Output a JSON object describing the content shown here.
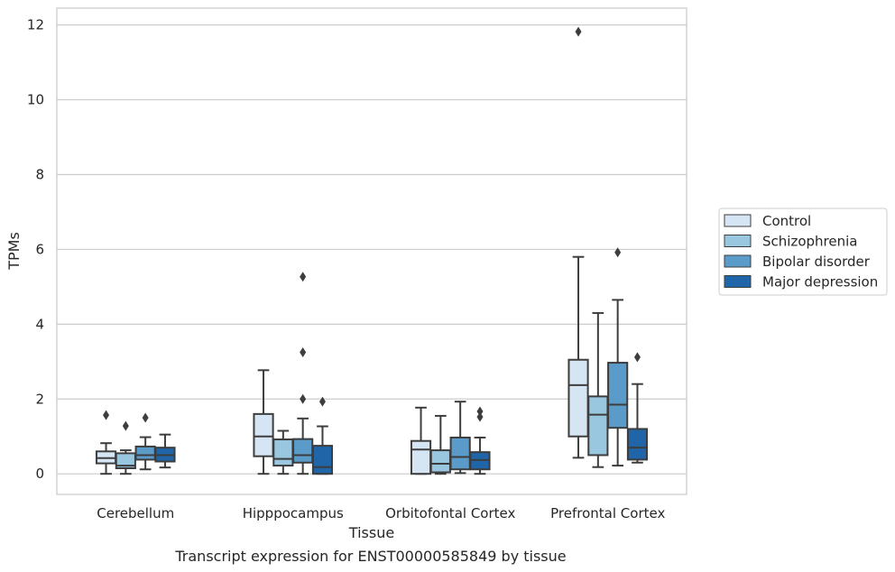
{
  "caption": "Transcript expression for ENST00000585849 by tissue",
  "chart_data": {
    "type": "box",
    "title": "",
    "xlabel": "Tissue",
    "ylabel": "TPMs",
    "ylim": [
      -0.55,
      12.45
    ],
    "yticks": [
      0,
      2,
      4,
      6,
      8,
      10,
      12
    ],
    "grid": "horizontal",
    "legend_position": "right",
    "categories": [
      "Cerebellum",
      "Hipppocampus",
      "Orbitofontal Cortex",
      "Prefrontal Cortex"
    ],
    "series": [
      {
        "name": "Control",
        "color": "#d6e5f4",
        "boxes": [
          {
            "whisker_low": 0.0,
            "q1": 0.28,
            "median": 0.42,
            "q3": 0.6,
            "whisker_high": 0.82,
            "outliers": [
              1.57
            ]
          },
          {
            "whisker_low": 0.0,
            "q1": 0.47,
            "median": 1.0,
            "q3": 1.6,
            "whisker_high": 2.77,
            "outliers": []
          },
          {
            "whisker_low": 0.0,
            "q1": 0.0,
            "median": 0.65,
            "q3": 0.88,
            "whisker_high": 1.77,
            "outliers": []
          },
          {
            "whisker_low": 0.43,
            "q1": 1.0,
            "median": 2.37,
            "q3": 3.05,
            "whisker_high": 5.8,
            "outliers": [
              11.82
            ]
          }
        ]
      },
      {
        "name": "Schizophrenia",
        "color": "#9ac7e0",
        "boxes": [
          {
            "whisker_low": 0.0,
            "q1": 0.15,
            "median": 0.22,
            "q3": 0.55,
            "whisker_high": 0.63,
            "outliers": [
              1.28
            ]
          },
          {
            "whisker_low": 0.0,
            "q1": 0.22,
            "median": 0.4,
            "q3": 0.92,
            "whisker_high": 1.15,
            "outliers": []
          },
          {
            "whisker_low": 0.0,
            "q1": 0.04,
            "median": 0.27,
            "q3": 0.63,
            "whisker_high": 1.55,
            "outliers": []
          },
          {
            "whisker_low": 0.18,
            "q1": 0.5,
            "median": 1.58,
            "q3": 2.07,
            "whisker_high": 4.3,
            "outliers": []
          }
        ]
      },
      {
        "name": "Bipolar disorder",
        "color": "#5a9bc9",
        "boxes": [
          {
            "whisker_low": 0.12,
            "q1": 0.38,
            "median": 0.5,
            "q3": 0.73,
            "whisker_high": 0.98,
            "outliers": [
              1.5
            ]
          },
          {
            "whisker_low": 0.0,
            "q1": 0.3,
            "median": 0.5,
            "q3": 0.93,
            "whisker_high": 1.48,
            "outliers": [
              5.27,
              3.25,
              2.0
            ]
          },
          {
            "whisker_low": 0.02,
            "q1": 0.12,
            "median": 0.45,
            "q3": 0.97,
            "whisker_high": 1.93,
            "outliers": []
          },
          {
            "whisker_low": 0.22,
            "q1": 1.23,
            "median": 1.85,
            "q3": 2.97,
            "whisker_high": 4.65,
            "outliers": [
              5.92
            ]
          }
        ]
      },
      {
        "name": "Major depression",
        "color": "#1f65a8",
        "boxes": [
          {
            "whisker_low": 0.17,
            "q1": 0.33,
            "median": 0.5,
            "q3": 0.7,
            "whisker_high": 1.05,
            "outliers": []
          },
          {
            "whisker_low": 0.0,
            "q1": 0.0,
            "median": 0.18,
            "q3": 0.75,
            "whisker_high": 1.27,
            "outliers": [
              1.93
            ]
          },
          {
            "whisker_low": 0.0,
            "q1": 0.12,
            "median": 0.37,
            "q3": 0.58,
            "whisker_high": 0.97,
            "outliers": [
              1.67,
              1.52
            ]
          },
          {
            "whisker_low": 0.3,
            "q1": 0.38,
            "median": 0.7,
            "q3": 1.2,
            "whisker_high": 2.4,
            "outliers": [
              3.12
            ]
          }
        ]
      }
    ]
  }
}
